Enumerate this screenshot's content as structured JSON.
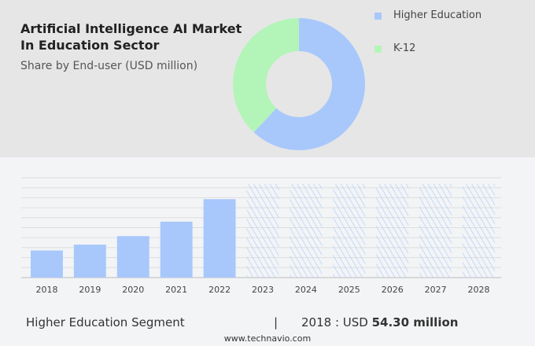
{
  "title_line1": "Artificial Intelligence AI Market",
  "title_line2": "In Education Sector",
  "subtitle": "Share by End-user (USD million)",
  "legend": [
    {
      "label": "Higher Education",
      "color": "#a8c8fc"
    },
    {
      "label": "K-12",
      "color": "#b3f5b8"
    }
  ],
  "chart_data": [
    {
      "type": "pie",
      "style": "donut",
      "title": "Share by End-user (USD million)",
      "slices": [
        {
          "label": "Higher Education",
          "value": 62,
          "color": "#a8c8fc"
        },
        {
          "label": "K-12",
          "value": 38,
          "color": "#b3f5b8"
        }
      ],
      "legend": "top-right"
    },
    {
      "type": "bar",
      "categories": [
        "2018",
        "2019",
        "2020",
        "2021",
        "2022",
        "2023",
        "2024",
        "2025",
        "2026",
        "2027",
        "2028"
      ],
      "values": [
        54.3,
        66,
        83,
        112,
        157,
        null,
        null,
        null,
        null,
        null,
        null
      ],
      "forecast_categories": [
        "2023",
        "2024",
        "2025",
        "2026",
        "2027",
        "2028"
      ],
      "ylim": [
        0,
        200
      ],
      "grid": true,
      "color": "#a8c8fc"
    }
  ],
  "footer": {
    "segment": "Higher Education Segment",
    "separator": "|",
    "year_prefix": "2018 : USD ",
    "value": "54.30 million",
    "website": "www.technavio.com"
  }
}
